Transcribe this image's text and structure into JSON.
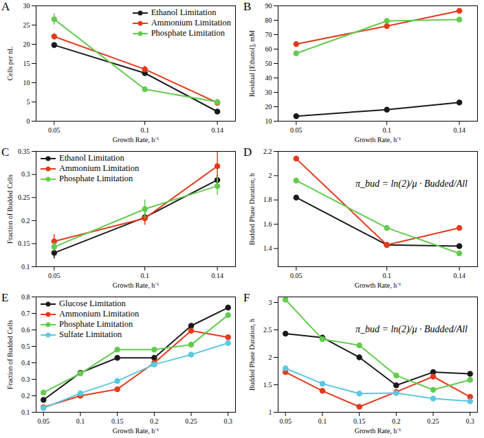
{
  "chart_data": [
    {
      "type": "line",
      "title": "A",
      "x_label": "Growth Rate, h⁻¹",
      "y_label": "Cells per nL",
      "x": [
        0.05,
        0.1,
        0.14
      ],
      "xlim": [
        0.04,
        0.15
      ],
      "xticks": [
        0.05,
        0.1,
        0.14
      ],
      "ylim": [
        0,
        30
      ],
      "yticks": [
        0,
        5,
        10,
        15,
        20,
        25,
        30
      ],
      "grid": false,
      "legend": "top-right",
      "marker": "circle",
      "series": [
        {
          "name": "Ethanol Limitation",
          "color": "#1a1a1a",
          "values": [
            19.8,
            12.5,
            2.5
          ],
          "errors": [
            0.3,
            0.5,
            0.3
          ]
        },
        {
          "name": "Ammonium Limitation",
          "color": "#e33b1c",
          "values": [
            22,
            13.5,
            4.8
          ],
          "errors": [
            0.8,
            0.8,
            0.4
          ]
        },
        {
          "name": "Phosphate Limitation",
          "color": "#63cc4f",
          "values": [
            26.5,
            8.3,
            5.0
          ],
          "errors": [
            1.5,
            0.5,
            0.5
          ]
        }
      ]
    },
    {
      "type": "line",
      "title": "B",
      "x_label": "Growth Rate, h⁻¹",
      "y_label": "Residual [Ethanol], mM",
      "x": [
        0.05,
        0.1,
        0.14
      ],
      "xlim": [
        0.04,
        0.15
      ],
      "xticks": [
        0.05,
        0.1,
        0.14
      ],
      "ylim": [
        10,
        90
      ],
      "yticks": [
        10,
        20,
        30,
        40,
        50,
        60,
        70,
        80,
        90
      ],
      "grid": false,
      "marker": "circle",
      "series": [
        {
          "name": "Ethanol Limitation",
          "color": "#1a1a1a",
          "values": [
            13.5,
            18,
            23
          ]
        },
        {
          "name": "Ammonium Limitation",
          "color": "#e33b1c",
          "values": [
            63.5,
            76,
            86.5
          ]
        },
        {
          "name": "Phosphate Limitation",
          "color": "#63cc4f",
          "values": [
            57,
            79.5,
            80.5
          ]
        }
      ]
    },
    {
      "type": "line",
      "title": "C",
      "x_label": "Growth Rate, h⁻¹",
      "y_label": "Fraction of Budded Cells",
      "x": [
        0.05,
        0.1,
        0.14
      ],
      "xlim": [
        0.04,
        0.15
      ],
      "xticks": [
        0.05,
        0.1,
        0.14
      ],
      "ylim": [
        0.1,
        0.35
      ],
      "yticks": [
        0.1,
        0.15,
        0.2,
        0.25,
        0.3,
        0.35
      ],
      "grid": false,
      "legend": "top-left",
      "marker": "circle",
      "series": [
        {
          "name": "Ethanol Limitation",
          "color": "#1a1a1a",
          "values": [
            0.13,
            0.207,
            0.288
          ],
          "errors": [
            0.013,
            0.01,
            0.01
          ]
        },
        {
          "name": "Ammonium Limitation",
          "color": "#e33b1c",
          "values": [
            0.155,
            0.205,
            0.318
          ],
          "errors": [
            0.015,
            0.015,
            0.035
          ]
        },
        {
          "name": "Phosphate Limitation",
          "color": "#63cc4f",
          "values": [
            0.143,
            0.225,
            0.275
          ],
          "errors": [
            0.01,
            0.02,
            0.02
          ]
        }
      ]
    },
    {
      "type": "line",
      "title": "D",
      "x_label": "Growth Rate, h⁻¹",
      "y_label": "Budded Phase Duration, h",
      "annotations": [
        "π_bud = ln(2)/μ · Budded/All"
      ],
      "x": [
        0.05,
        0.1,
        0.14
      ],
      "xlim": [
        0.04,
        0.15
      ],
      "xticks": [
        0.05,
        0.1,
        0.14
      ],
      "ylim": [
        1.25,
        2.2
      ],
      "yticks": [
        1.4,
        1.6,
        1.8,
        2,
        2.2
      ],
      "grid": false,
      "marker": "circle",
      "series": [
        {
          "name": "Ethanol Limitation",
          "color": "#1a1a1a",
          "values": [
            1.82,
            1.43,
            1.42
          ]
        },
        {
          "name": "Ammonium Limitation",
          "color": "#e33b1c",
          "values": [
            2.14,
            1.43,
            1.57
          ]
        },
        {
          "name": "Phosphate Limitation",
          "color": "#63cc4f",
          "values": [
            1.96,
            1.57,
            1.36
          ]
        }
      ]
    },
    {
      "type": "line",
      "title": "E",
      "x_label": "Growth Rate, h⁻¹",
      "y_label": "Fraction of Budded Cells",
      "x": [
        0.05,
        0.1,
        0.15,
        0.2,
        0.25,
        0.3
      ],
      "xlim": [
        0.04,
        0.31
      ],
      "xticks": [
        0.05,
        0.1,
        0.15,
        0.2,
        0.25,
        0.3
      ],
      "ylim": [
        0.1,
        0.8
      ],
      "yticks": [
        0.1,
        0.2,
        0.3,
        0.4,
        0.5,
        0.6,
        0.7,
        0.8
      ],
      "grid": false,
      "legend": "top-left",
      "marker": "circle",
      "series": [
        {
          "name": "Glucose Limitation",
          "color": "#1a1a1a",
          "values": [
            0.175,
            0.34,
            0.43,
            0.43,
            0.625,
            0.735
          ]
        },
        {
          "name": "Ammonium Limitation",
          "color": "#e33b1c",
          "values": [
            0.13,
            0.2,
            0.24,
            0.4,
            0.595,
            0.555
          ]
        },
        {
          "name": "Phosphate Limitation",
          "color": "#63cc4f",
          "values": [
            0.22,
            0.335,
            0.48,
            0.48,
            0.51,
            0.69
          ]
        },
        {
          "name": "Sulfate Limitation",
          "color": "#5cc8e0",
          "values": [
            0.125,
            0.215,
            0.29,
            0.39,
            0.45,
            0.52
          ]
        }
      ]
    },
    {
      "type": "line",
      "title": "F",
      "x_label": "Growth Rate, h⁻¹",
      "y_label": "Budded Phase Duration, h",
      "annotations": [
        "π_bud = ln(2)/μ · Budded/All"
      ],
      "x": [
        0.05,
        0.1,
        0.15,
        0.2,
        0.25,
        0.3
      ],
      "xlim": [
        0.04,
        0.31
      ],
      "xticks": [
        0.05,
        0.1,
        0.15,
        0.2,
        0.25,
        0.3
      ],
      "ylim": [
        1,
        3.1
      ],
      "yticks": [
        1,
        1.5,
        2,
        2.5,
        3
      ],
      "grid": false,
      "marker": "circle",
      "series": [
        {
          "name": "Glucose Limitation",
          "color": "#1a1a1a",
          "values": [
            2.43,
            2.36,
            2.0,
            1.49,
            1.73,
            1.7
          ]
        },
        {
          "name": "Ammonium Limitation",
          "color": "#e33b1c",
          "values": [
            1.73,
            1.39,
            1.1,
            1.37,
            1.65,
            1.28
          ]
        },
        {
          "name": "Phosphate Limitation",
          "color": "#63cc4f",
          "values": [
            3.05,
            2.33,
            2.22,
            1.67,
            1.41,
            1.59
          ]
        },
        {
          "name": "Sulfate Limitation",
          "color": "#5cc8e0",
          "values": [
            1.8,
            1.52,
            1.34,
            1.35,
            1.25,
            1.2
          ]
        }
      ]
    }
  ]
}
